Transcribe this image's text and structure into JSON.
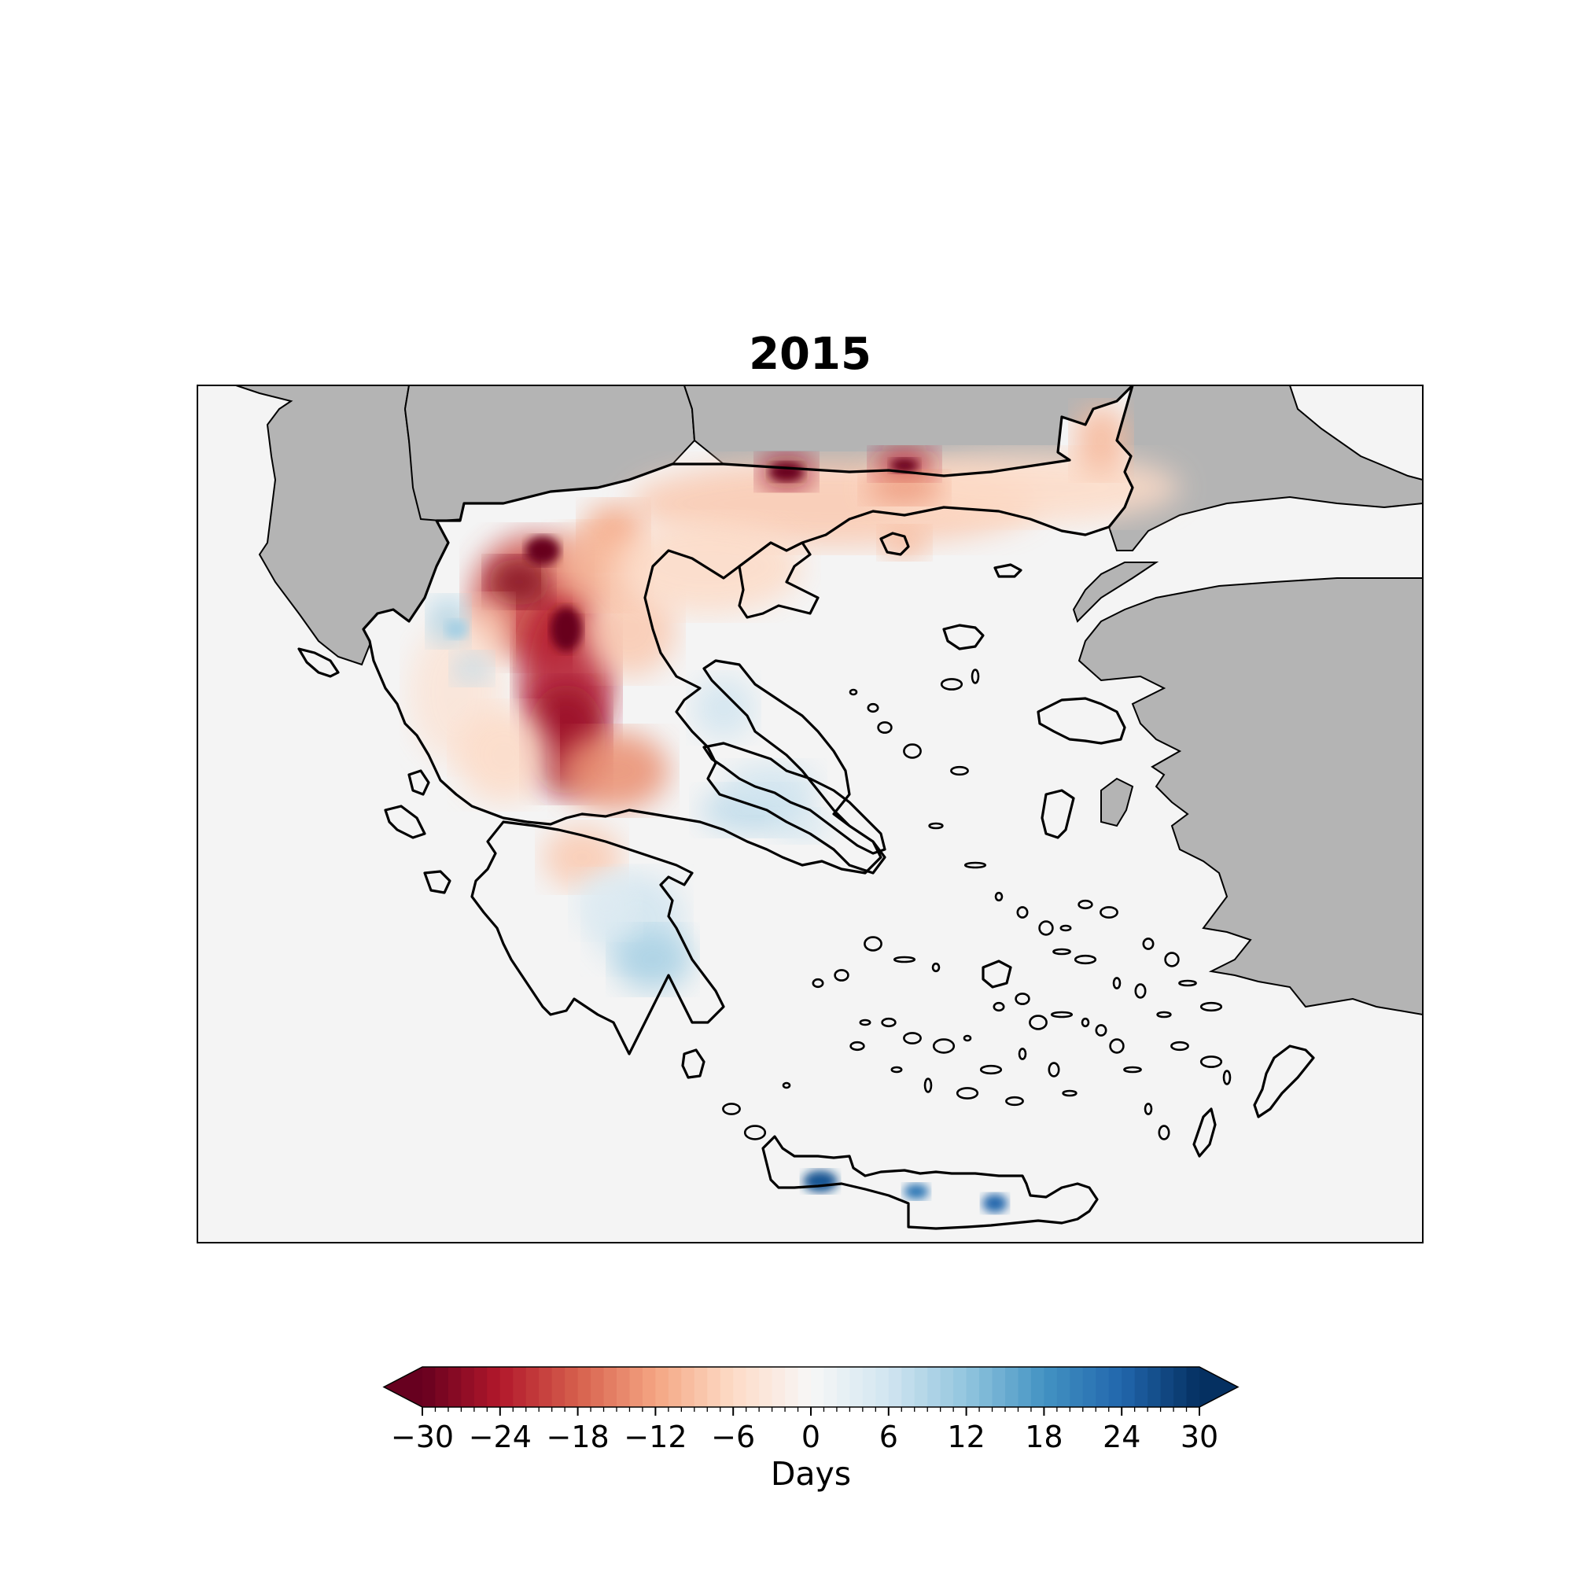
{
  "map": {
    "title": "2015",
    "colorbar": {
      "label": "Days",
      "colormap": "RdBu",
      "vmin": -30,
      "vmax": 30,
      "levels": 60,
      "extend": "both",
      "ticks": [
        {
          "value": -30,
          "label": "−30"
        },
        {
          "value": -24,
          "label": "−24"
        },
        {
          "value": -18,
          "label": "−18"
        },
        {
          "value": -12,
          "label": "−12"
        },
        {
          "value": -6,
          "label": "−6"
        },
        {
          "value": 0,
          "label": "0"
        },
        {
          "value": 6,
          "label": "6"
        },
        {
          "value": 12,
          "label": "12"
        },
        {
          "value": 18,
          "label": "18"
        },
        {
          "value": 24,
          "label": "24"
        },
        {
          "value": 30,
          "label": "30"
        }
      ]
    },
    "colors": {
      "sea": "#f4f4f4",
      "neighbor_land": "#b4b4b4",
      "coastline": "#000000",
      "strong_negative": "#67001f",
      "strong_positive": "#053061"
    }
  }
}
